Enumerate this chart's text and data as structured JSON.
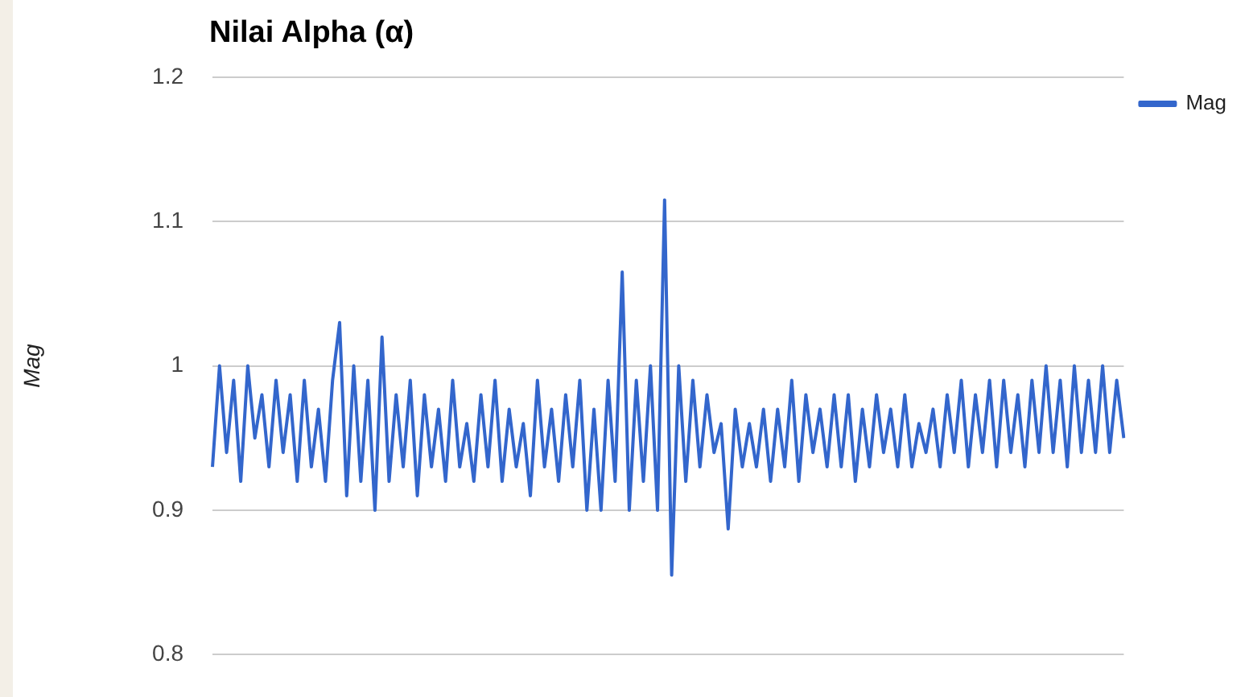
{
  "chart_data": {
    "type": "line",
    "title": "Nilai Alpha (α)",
    "ylabel": "Mag",
    "categories": [
      null,
      null,
      null,
      null,
      null,
      null,
      null,
      null,
      null,
      null,
      null,
      null,
      null,
      null,
      null,
      null,
      null,
      null,
      null,
      null,
      null,
      null,
      null,
      null,
      null,
      null,
      null,
      null,
      null,
      null,
      null,
      null,
      null,
      null,
      null,
      null,
      null,
      null,
      null,
      null,
      null,
      null,
      null,
      null,
      null,
      null,
      null,
      null,
      null,
      null,
      null,
      null,
      null,
      null,
      null,
      null,
      null,
      null,
      null,
      null,
      null,
      null,
      null,
      null,
      null,
      null,
      null,
      null,
      null,
      null,
      null,
      null,
      null,
      null,
      null,
      null,
      null,
      null,
      null,
      null,
      null,
      null,
      null,
      null,
      null,
      null,
      null,
      null,
      null,
      null,
      null,
      null,
      null,
      null,
      null,
      null,
      null,
      null,
      null,
      null,
      null,
      null,
      null,
      null,
      null,
      null,
      null,
      null,
      null,
      null,
      null,
      null,
      null,
      null,
      null,
      null,
      null,
      null,
      null,
      null,
      null,
      null,
      null,
      null,
      null,
      null,
      null,
      null,
      null,
      null
    ],
    "series": [
      {
        "name": "Mag",
        "color": "#3366cc",
        "values": [
          0.93,
          1.0,
          0.94,
          0.99,
          0.92,
          1.0,
          0.95,
          0.98,
          0.93,
          0.99,
          0.94,
          0.98,
          0.92,
          0.99,
          0.93,
          0.97,
          0.92,
          0.99,
          1.03,
          0.91,
          1.0,
          0.92,
          0.99,
          0.9,
          1.02,
          0.92,
          0.98,
          0.93,
          0.99,
          0.91,
          0.98,
          0.93,
          0.97,
          0.92,
          0.99,
          0.93,
          0.96,
          0.92,
          0.98,
          0.93,
          0.99,
          0.92,
          0.97,
          0.93,
          0.96,
          0.91,
          0.99,
          0.93,
          0.97,
          0.92,
          0.98,
          0.93,
          0.99,
          0.9,
          0.97,
          0.9,
          0.99,
          0.92,
          1.065,
          0.9,
          0.99,
          0.92,
          1.0,
          0.9,
          1.115,
          0.855,
          1.0,
          0.92,
          0.99,
          0.93,
          0.98,
          0.94,
          0.96,
          0.887,
          0.97,
          0.93,
          0.96,
          0.93,
          0.97,
          0.92,
          0.97,
          0.93,
          0.99,
          0.92,
          0.98,
          0.94,
          0.97,
          0.93,
          0.98,
          0.93,
          0.98,
          0.92,
          0.97,
          0.93,
          0.98,
          0.94,
          0.97,
          0.93,
          0.98,
          0.93,
          0.96,
          0.94,
          0.97,
          0.93,
          0.98,
          0.94,
          0.99,
          0.93,
          0.98,
          0.94,
          0.99,
          0.93,
          0.99,
          0.94,
          0.98,
          0.93,
          0.99,
          0.94,
          1.0,
          0.94,
          0.99,
          0.93,
          1.0,
          0.94,
          0.99,
          0.94,
          1.0,
          0.94,
          0.99,
          0.95
        ]
      }
    ],
    "ylim": [
      0.8,
      1.2
    ],
    "yticks": [
      0.8,
      0.9,
      1,
      1.1,
      1.2
    ],
    "grid": "y",
    "legend": "top right",
    "tick_labels": "y",
    "marker": "none",
    "line_style": "solid"
  }
}
